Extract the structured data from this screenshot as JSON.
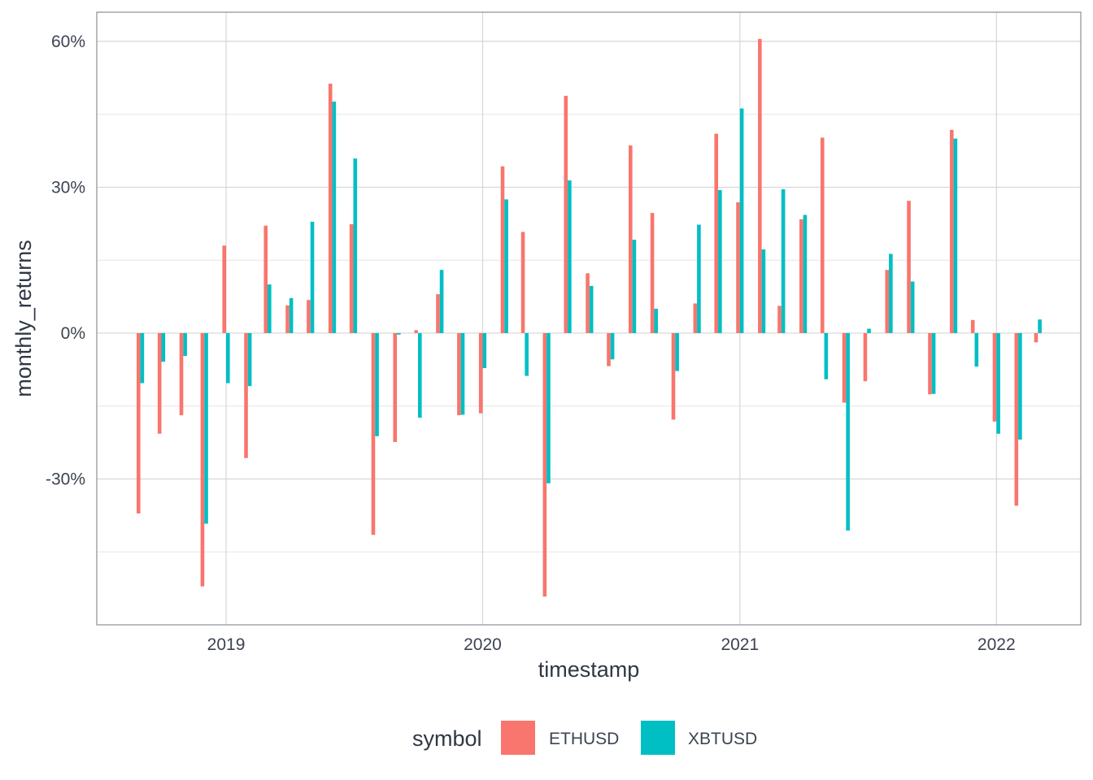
{
  "chart_data": {
    "type": "bar",
    "xlabel": "timestamp",
    "ylabel": "monthly_returns",
    "ylim": [
      -0.6,
      0.66
    ],
    "y_ticks": [
      -0.3,
      0,
      0.3,
      0.6
    ],
    "y_tick_labels": [
      "-30%",
      "0%",
      "30%",
      "60%"
    ],
    "x_range": [
      "2018-07-01",
      "2022-05-01"
    ],
    "x_ticks": [
      "2019-01-01",
      "2020-01-01",
      "2021-01-01",
      "2022-01-01"
    ],
    "x_tick_labels": [
      "2019",
      "2020",
      "2021",
      "2022"
    ],
    "grid": true,
    "legend": {
      "title": "symbol",
      "position": "bottom"
    },
    "x": [
      "2018-09",
      "2018-10",
      "2018-11",
      "2018-12",
      "2019-01",
      "2019-02",
      "2019-03",
      "2019-04",
      "2019-05",
      "2019-06",
      "2019-07",
      "2019-08",
      "2019-09",
      "2019-10",
      "2019-11",
      "2019-12",
      "2020-01",
      "2020-02",
      "2020-03",
      "2020-04",
      "2020-05",
      "2020-06",
      "2020-07",
      "2020-08",
      "2020-09",
      "2020-10",
      "2020-11",
      "2020-12",
      "2021-01",
      "2021-02",
      "2021-03",
      "2021-04",
      "2021-05",
      "2021-06",
      "2021-07",
      "2021-08",
      "2021-09",
      "2021-10",
      "2021-11",
      "2021-12",
      "2022-01",
      "2022-02",
      "2022-03"
    ],
    "series": [
      {
        "name": "ETHUSD",
        "color": "#F8766D",
        "values": [
          -0.371,
          -0.207,
          -0.169,
          -0.521,
          0.18,
          -0.257,
          0.221,
          0.057,
          0.068,
          0.513,
          0.224,
          -0.415,
          -0.224,
          0.006,
          0.08,
          -0.169,
          -0.165,
          0.343,
          0.208,
          -0.542,
          0.488,
          0.123,
          -0.068,
          0.386,
          0.247,
          -0.178,
          0.061,
          0.41,
          0.269,
          0.605,
          0.056,
          0.234,
          0.402,
          -0.143,
          -0.099,
          0.13,
          0.272,
          -0.126,
          0.418,
          0.027,
          -0.182,
          -0.355,
          -0.019
        ]
      },
      {
        "name": "XBTUSD",
        "color": "#00BFC4",
        "values": [
          -0.103,
          -0.059,
          -0.047,
          -0.392,
          -0.103,
          -0.109,
          0.1,
          0.072,
          0.229,
          0.476,
          0.359,
          -0.212,
          -0.003,
          -0.174,
          0.13,
          -0.168,
          -0.072,
          0.275,
          -0.088,
          -0.309,
          0.314,
          0.097,
          -0.054,
          0.192,
          0.05,
          -0.078,
          0.223,
          0.294,
          0.462,
          0.172,
          0.296,
          0.243,
          -0.095,
          -0.406,
          0.009,
          0.163,
          0.106,
          -0.125,
          0.4,
          -0.069,
          -0.207,
          -0.219,
          0.028
        ]
      }
    ]
  }
}
